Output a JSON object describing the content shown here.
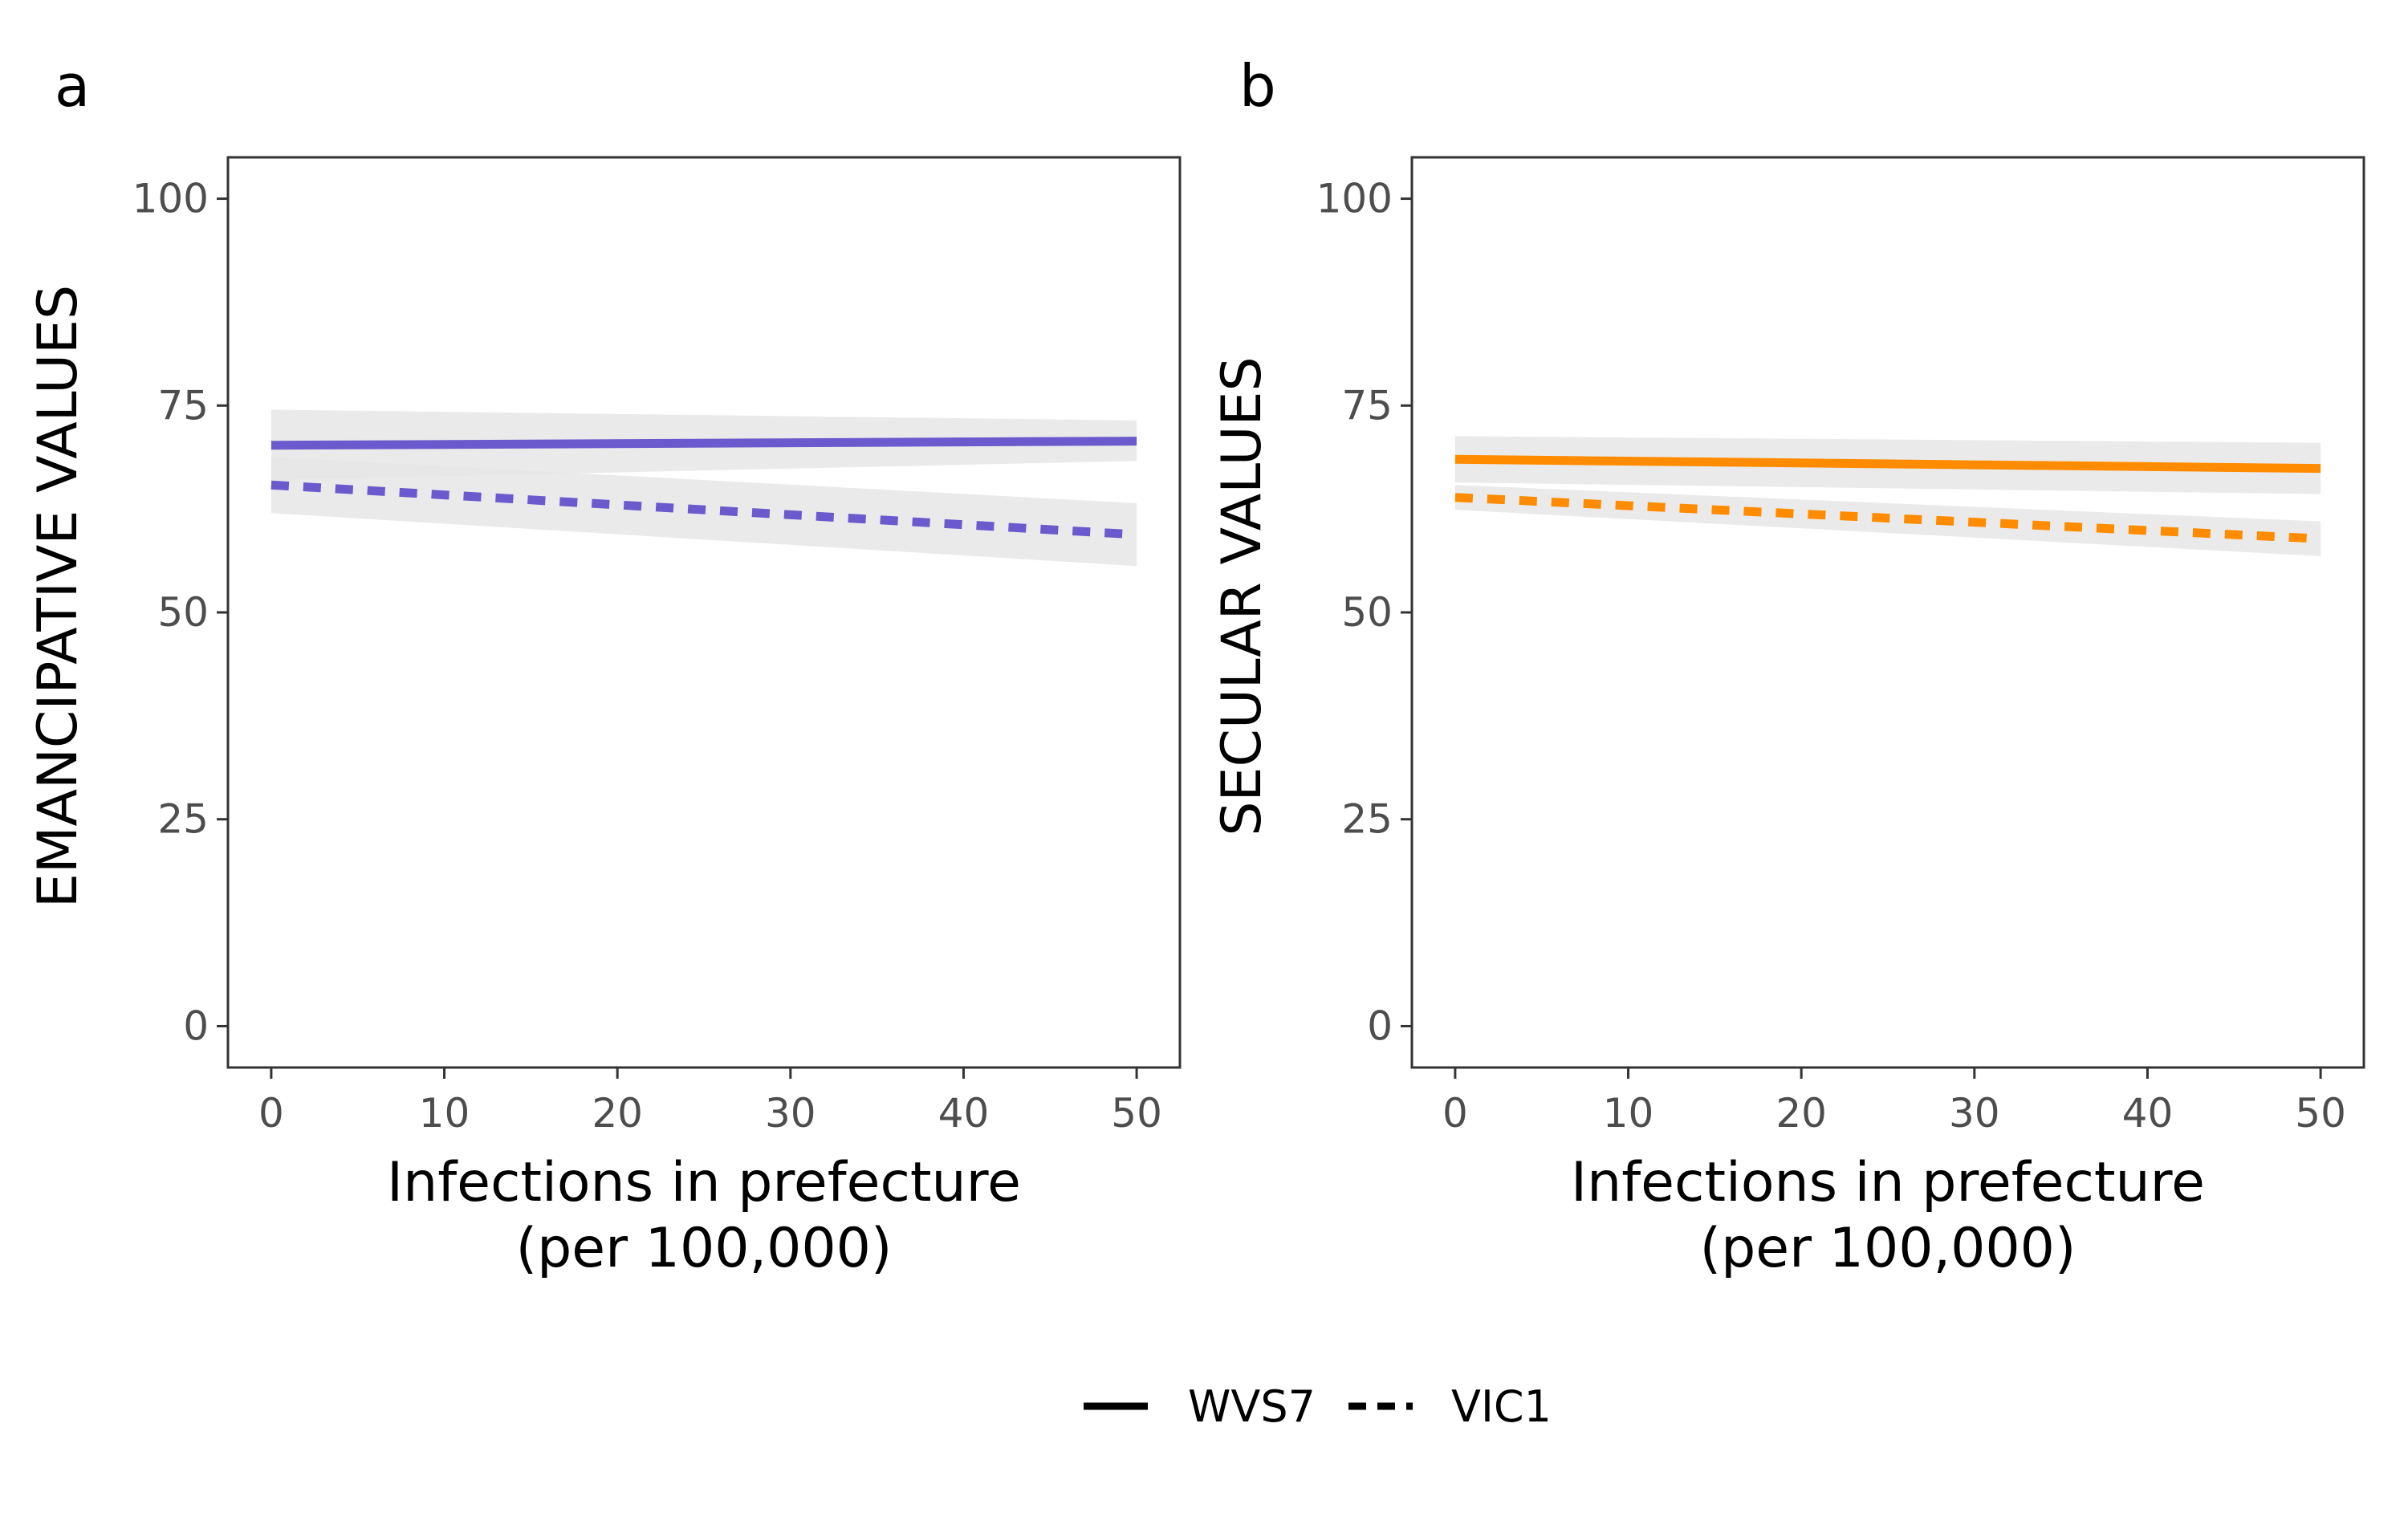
{
  "chart_data": [
    {
      "type": "line",
      "panel_label": "a",
      "xlabel": [
        "Infections in prefecture",
        "(per 100,000)"
      ],
      "ylabel": "EMANCIPATIVE VALUES",
      "xlim": [
        -2.5,
        52.5
      ],
      "ylim": [
        -5,
        105
      ],
      "xticks": [
        0,
        10,
        20,
        30,
        40,
        50
      ],
      "yticks": [
        0,
        25,
        50,
        75,
        100
      ],
      "grid": false,
      "color": "#6a5acd",
      "series": [
        {
          "name": "WVS7",
          "style": "solid",
          "x": [
            0,
            50
          ],
          "y": [
            70.2,
            70.7
          ],
          "ci_low": [
            66.0,
            68.3
          ],
          "ci_high": [
            74.5,
            73.2
          ]
        },
        {
          "name": "VIC1",
          "style": "dashed",
          "x": [
            0,
            50
          ],
          "y": [
            65.4,
            59.4
          ],
          "ci_low": [
            62.0,
            55.6
          ],
          "ci_high": [
            68.8,
            63.2
          ]
        }
      ]
    },
    {
      "type": "line",
      "panel_label": "b",
      "xlabel": [
        "Infections in prefecture",
        "(per 100,000)"
      ],
      "ylabel": "SECULAR VALUES",
      "xlim": [
        -2.5,
        52.5
      ],
      "ylim": [
        -5,
        105
      ],
      "xticks": [
        0,
        10,
        20,
        30,
        40,
        50
      ],
      "yticks": [
        0,
        25,
        50,
        75,
        100
      ],
      "grid": false,
      "color": "#ff8c00",
      "series": [
        {
          "name": "WVS7",
          "style": "solid",
          "x": [
            0,
            50
          ],
          "y": [
            68.5,
            67.4
          ],
          "ci_low": [
            65.7,
            64.3
          ],
          "ci_high": [
            71.3,
            70.5
          ]
        },
        {
          "name": "VIC1",
          "style": "dashed",
          "x": [
            0,
            50
          ],
          "y": [
            63.9,
            58.9
          ],
          "ci_low": [
            62.4,
            56.8
          ],
          "ci_high": [
            65.4,
            61.0
          ]
        }
      ]
    }
  ],
  "legend": {
    "position": "bottom",
    "items": [
      {
        "label": "WVS7",
        "style": "solid"
      },
      {
        "label": "VIC1",
        "style": "dashed"
      }
    ]
  },
  "colors": {
    "ci_band": "#e6e6e6",
    "panel_border": "#333333",
    "tick_label": "#4d4d4d"
  }
}
